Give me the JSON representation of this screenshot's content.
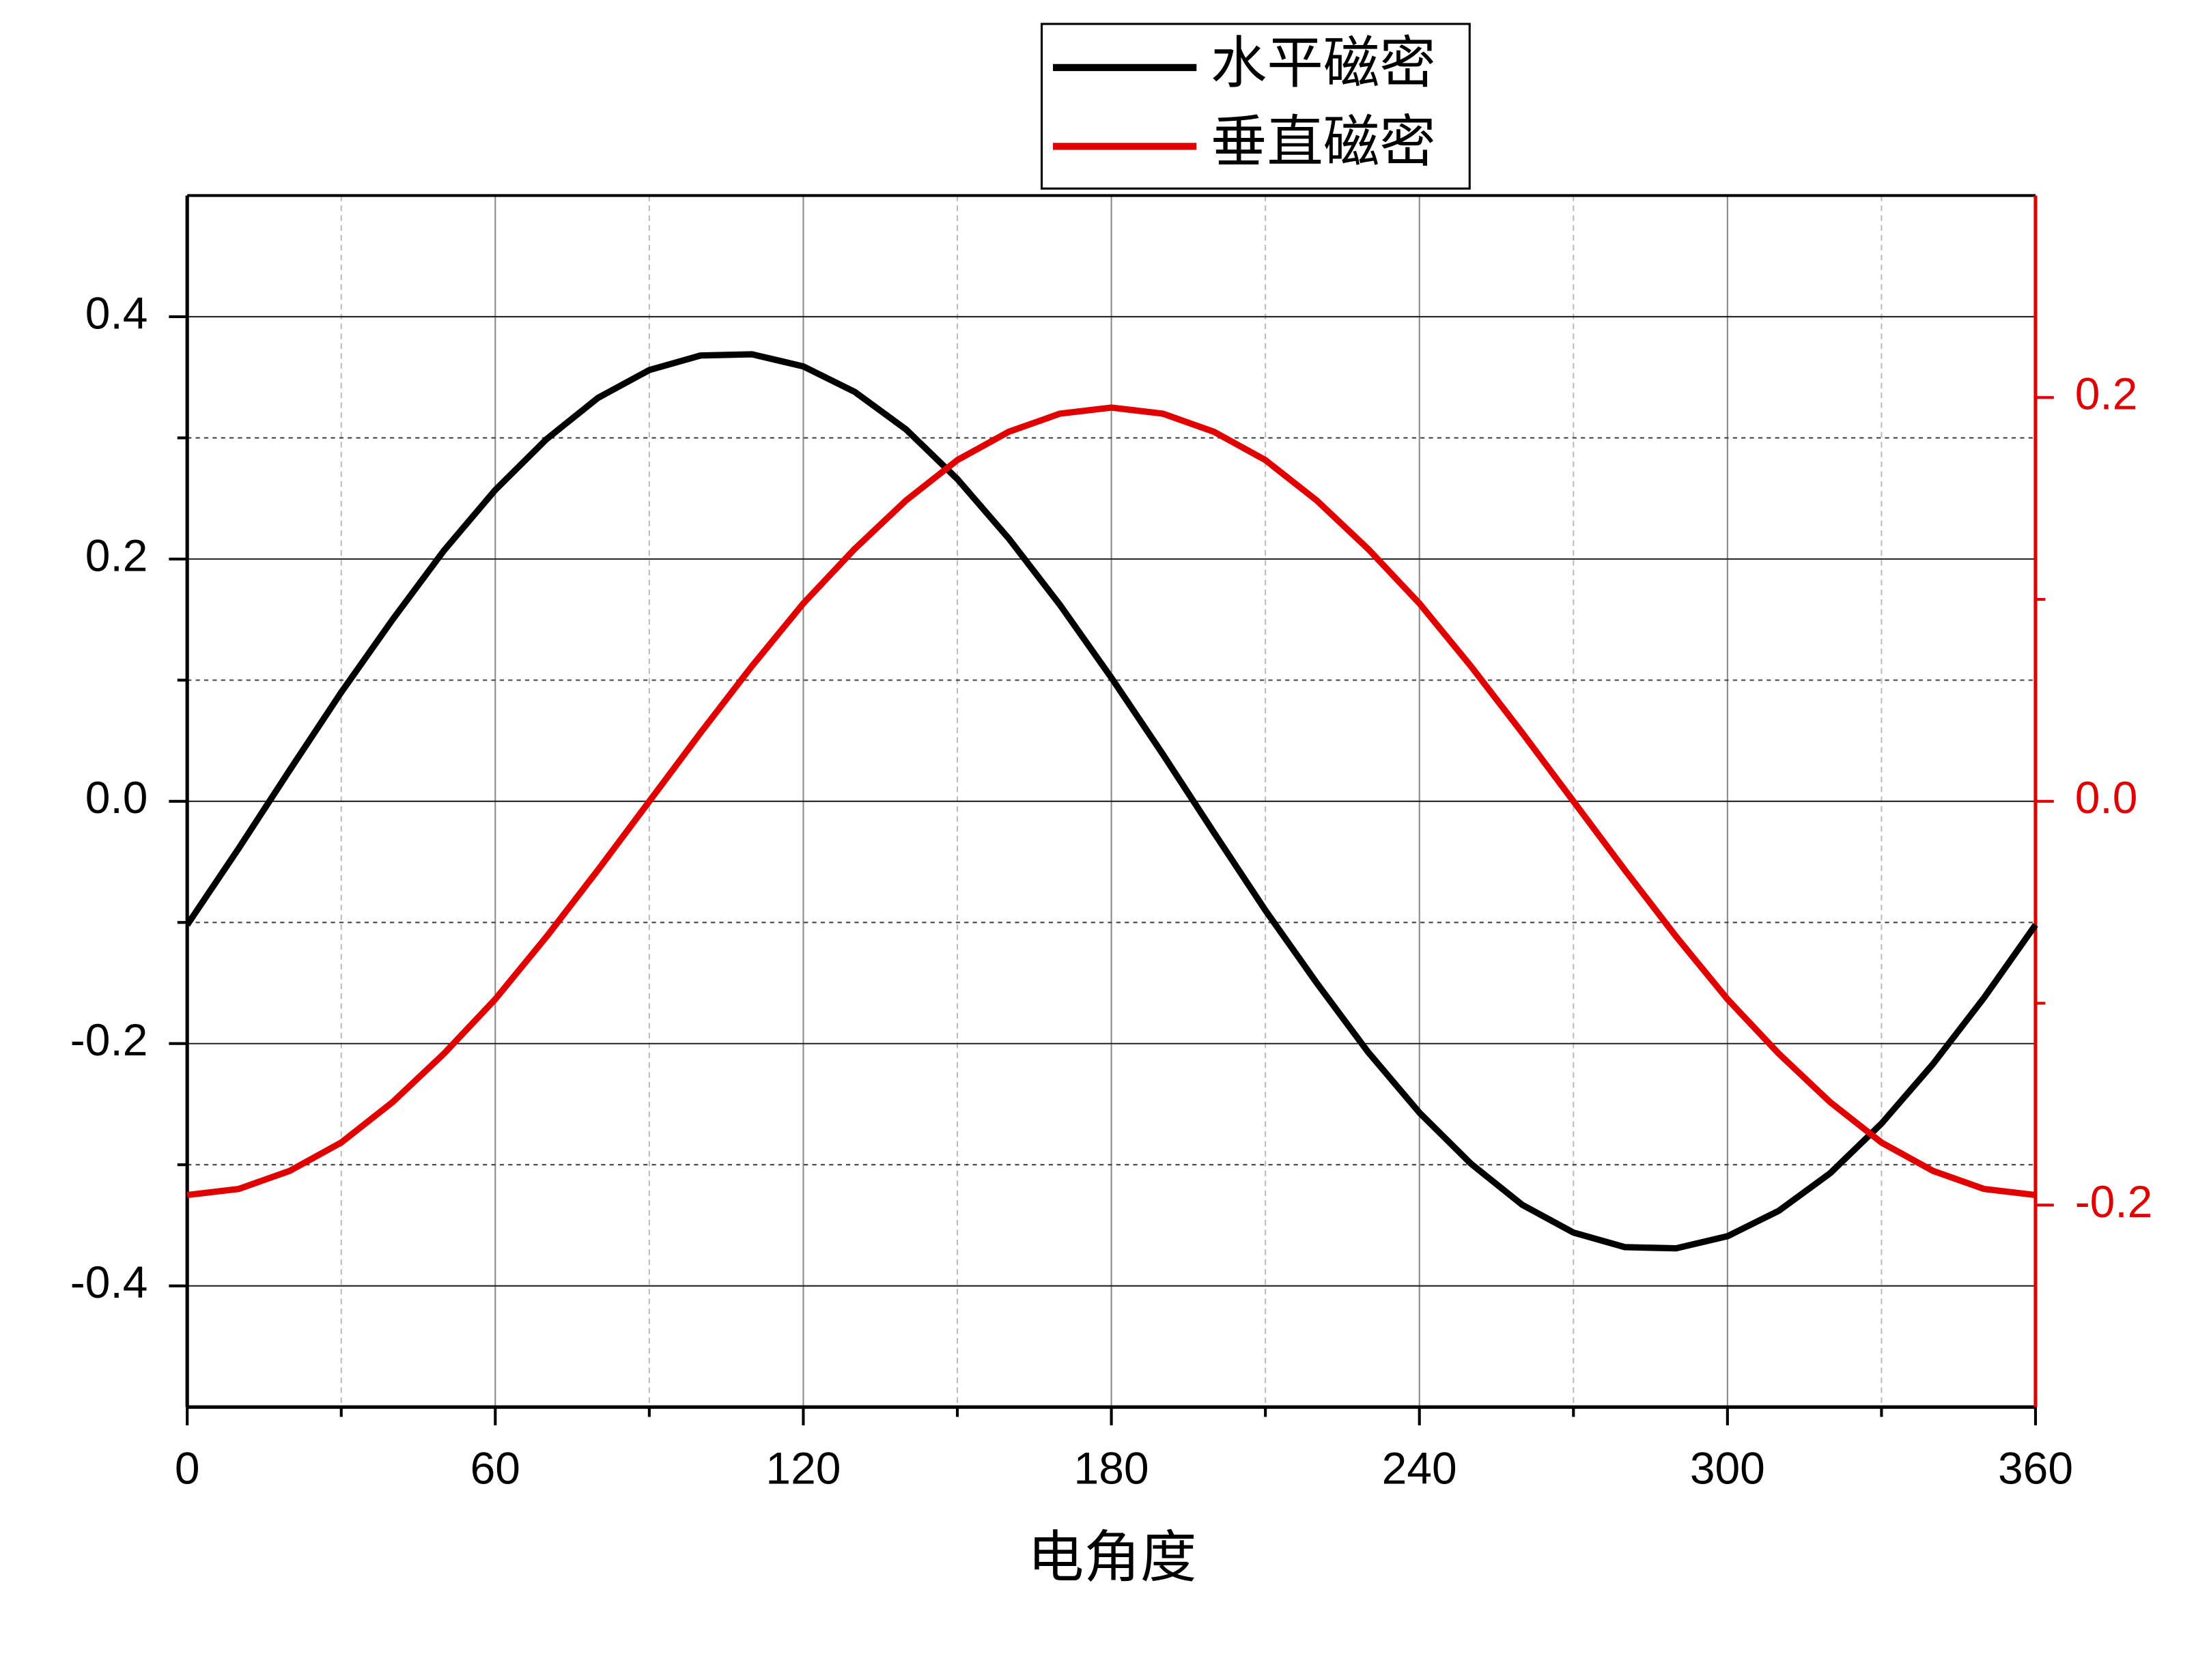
{
  "chart_data": {
    "type": "line",
    "x_label": "电角度",
    "x": [
      0,
      10,
      20,
      30,
      40,
      50,
      60,
      70,
      80,
      90,
      100,
      110,
      120,
      130,
      140,
      150,
      160,
      170,
      180,
      190,
      200,
      210,
      220,
      230,
      240,
      250,
      260,
      270,
      280,
      290,
      300,
      310,
      320,
      330,
      340,
      350,
      360
    ],
    "series": [
      {
        "name": "水平磁密",
        "color": "#000000",
        "values": [
          -0.102,
          -0.039,
          0.026,
          0.09,
          0.15,
          0.207,
          0.257,
          0.299,
          0.333,
          0.356,
          0.368,
          0.369,
          0.359,
          0.338,
          0.307,
          0.266,
          0.217,
          0.162,
          0.102,
          0.039,
          -0.026,
          -0.09,
          -0.15,
          -0.207,
          -0.257,
          -0.299,
          -0.333,
          -0.356,
          -0.368,
          -0.369,
          -0.359,
          -0.338,
          -0.307,
          -0.266,
          -0.217,
          -0.162,
          -0.102
        ]
      },
      {
        "name": "垂直磁密",
        "color": "#e00000",
        "axis": "y2",
        "values": [
          -0.195,
          -0.192,
          -0.183,
          -0.169,
          -0.149,
          -0.125,
          -0.098,
          -0.067,
          -0.034,
          0,
          0.034,
          0.067,
          0.098,
          0.125,
          0.149,
          0.169,
          0.183,
          0.192,
          0.195,
          0.192,
          0.183,
          0.169,
          0.149,
          0.125,
          0.098,
          0.067,
          0.034,
          0,
          -0.034,
          -0.067,
          -0.098,
          -0.125,
          -0.149,
          -0.169,
          -0.183,
          -0.192,
          -0.195
        ]
      }
    ],
    "xlim": [
      0,
      360
    ],
    "xticks": [
      0,
      60,
      120,
      180,
      240,
      300,
      360
    ],
    "xminor": [
      30,
      90,
      150,
      210,
      270,
      330
    ],
    "ylim": [
      -0.5,
      0.5
    ],
    "yticks": [
      -0.4,
      -0.2,
      {
        "value": 0,
        "label": "0.0"
      },
      0.2,
      0.4
    ],
    "yminor": [
      -0.3,
      -0.1,
      0.1,
      0.3
    ],
    "y2lim": [
      -0.3,
      0.3
    ],
    "y2ticks": [
      -0.2,
      {
        "value": 0,
        "label": "0.0"
      },
      0.2
    ],
    "y2minor": [
      -0.1,
      0.1
    ],
    "grid": true,
    "legend": "top"
  }
}
